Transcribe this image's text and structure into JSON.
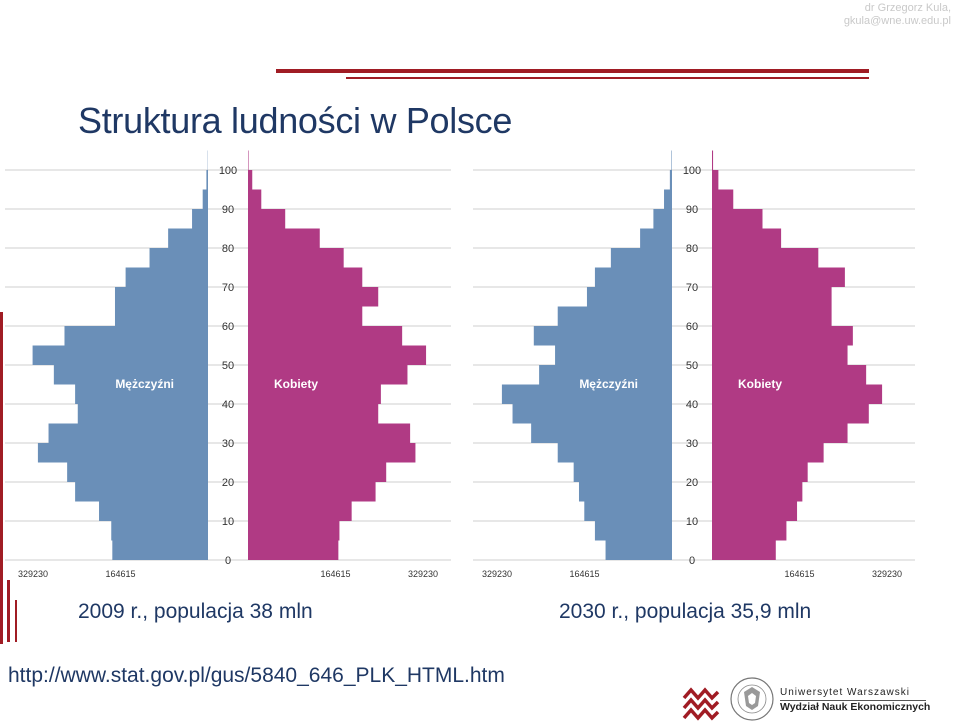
{
  "header": {
    "author_line1": "dr Grzegorz Kula,",
    "author_line2": "gkula@wne.uw.edu.pl",
    "title": "Struktura ludności w Polsce"
  },
  "captions": {
    "left": "2009 r., populacja 38 mln",
    "right": "2030 r., populacja 35,9 mln"
  },
  "link": "http://www.stat.gov.pl/gus/5840_646_PLK_HTML.htm",
  "footer": {
    "university": "Uniwersytet Warszawski",
    "faculty": "Wydział Nauk Ekonomicznych",
    "crest_text": "UNIVERSITATIS VARSOVIENSIS"
  },
  "colors": {
    "men": "#6a8fb8",
    "women": "#b03a84",
    "accent": "#a01c24",
    "text": "#1f3864"
  },
  "chart_data": [
    {
      "type": "bar",
      "orientation": "population-pyramid",
      "year": "2009",
      "ages_bin_width": 5,
      "age_ticks": [
        "0",
        "10",
        "20",
        "30",
        "40",
        "50",
        "60",
        "70",
        "80",
        "90",
        "100"
      ],
      "x_tick_labels": [
        "329230",
        "164615",
        "164615",
        "329230"
      ],
      "xlim": [
        0,
        329230
      ],
      "legend": [
        "Mężczyźni",
        "Kobiety"
      ],
      "series": [
        {
          "name": "Mężczyźni",
          "values": [
            180000,
            182000,
            205000,
            250000,
            265000,
            320000,
            300000,
            245000,
            250000,
            290000,
            330000,
            270000,
            175000,
            175000,
            155000,
            110000,
            75000,
            30000,
            10000,
            3000,
            500
          ]
        },
        {
          "name": "Kobiety",
          "values": [
            170000,
            172000,
            195000,
            240000,
            260000,
            315000,
            305000,
            245000,
            250000,
            300000,
            335000,
            290000,
            215000,
            245000,
            215000,
            180000,
            135000,
            70000,
            25000,
            8000,
            1000
          ]
        }
      ]
    },
    {
      "type": "bar",
      "orientation": "population-pyramid",
      "year": "2030",
      "ages_bin_width": 5,
      "age_ticks": [
        "0",
        "10",
        "20",
        "30",
        "40",
        "50",
        "60",
        "70",
        "80",
        "90",
        "100"
      ],
      "x_tick_labels": [
        "329230",
        "164615",
        "164615",
        "329230"
      ],
      "xlim": [
        0,
        329230
      ],
      "legend": [
        "Mężczyźni",
        "Kobiety"
      ],
      "series": [
        {
          "name": "Mężczyźni",
          "values": [
            125000,
            145000,
            165000,
            175000,
            185000,
            215000,
            265000,
            300000,
            320000,
            250000,
            220000,
            260000,
            215000,
            160000,
            145000,
            115000,
            60000,
            35000,
            15000,
            4000,
            1000
          ]
        },
        {
          "name": "Kobiety",
          "values": [
            120000,
            140000,
            160000,
            170000,
            180000,
            210000,
            255000,
            295000,
            320000,
            290000,
            255000,
            265000,
            225000,
            225000,
            250000,
            200000,
            130000,
            95000,
            40000,
            12000,
            2000
          ]
        }
      ]
    }
  ]
}
